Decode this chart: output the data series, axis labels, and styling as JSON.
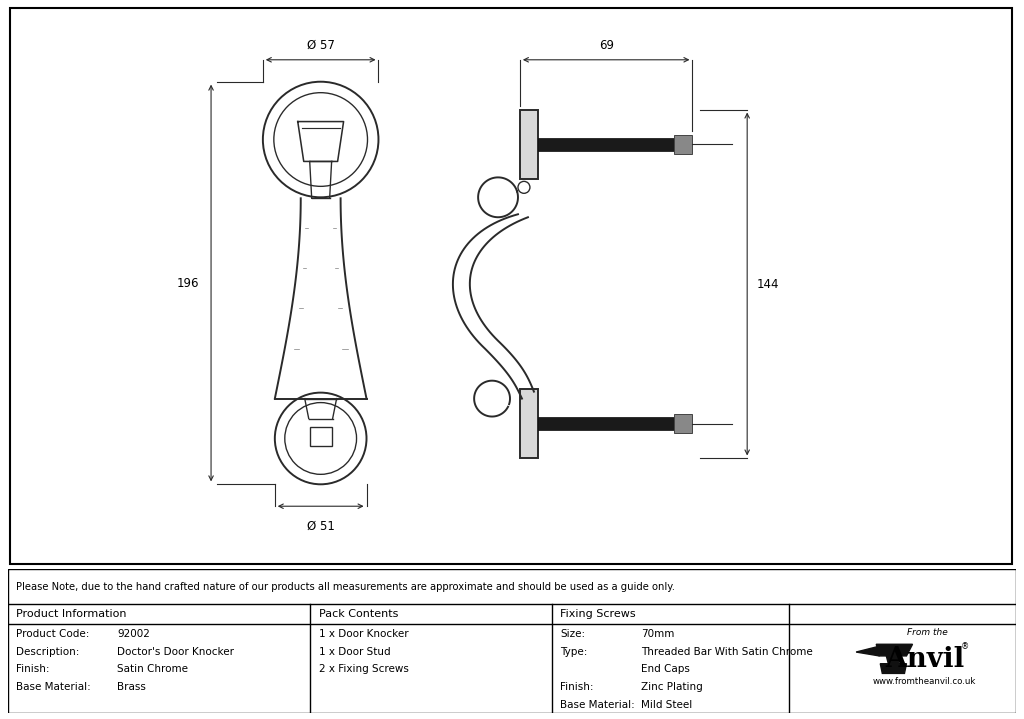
{
  "bg_color": "#ffffff",
  "line_color": "#2a2a2a",
  "dim_color": "#2a2a2a",
  "note_text": "Please Note, due to the hand crafted nature of our products all measurements are approximate and should be used as a guide only.",
  "product_info": {
    "header": "Product Information",
    "rows": [
      [
        "Product Code:",
        "92002"
      ],
      [
        "Description:",
        "Doctor's Door Knocker"
      ],
      [
        "Finish:",
        "Satin Chrome"
      ],
      [
        "Base Material:",
        "Brass"
      ]
    ]
  },
  "pack_contents": {
    "header": "Pack Contents",
    "rows": [
      "1 x Door Knocker",
      "1 x Door Stud",
      "2 x Fixing Screws"
    ]
  },
  "fixing_screws": {
    "header": "Fixing Screws",
    "rows": [
      [
        "Size:",
        "70mm"
      ],
      [
        "Type:",
        "Threaded Bar With Satin Chrome"
      ],
      [
        "",
        "End Caps"
      ],
      [
        "Finish:",
        "Zinc Plating"
      ],
      [
        "Base Material:",
        "Mild Steel"
      ]
    ]
  },
  "dim_57": "Ø 57",
  "dim_51": "Ø 51",
  "dim_196": "196",
  "dim_69": "69",
  "dim_144": "144"
}
